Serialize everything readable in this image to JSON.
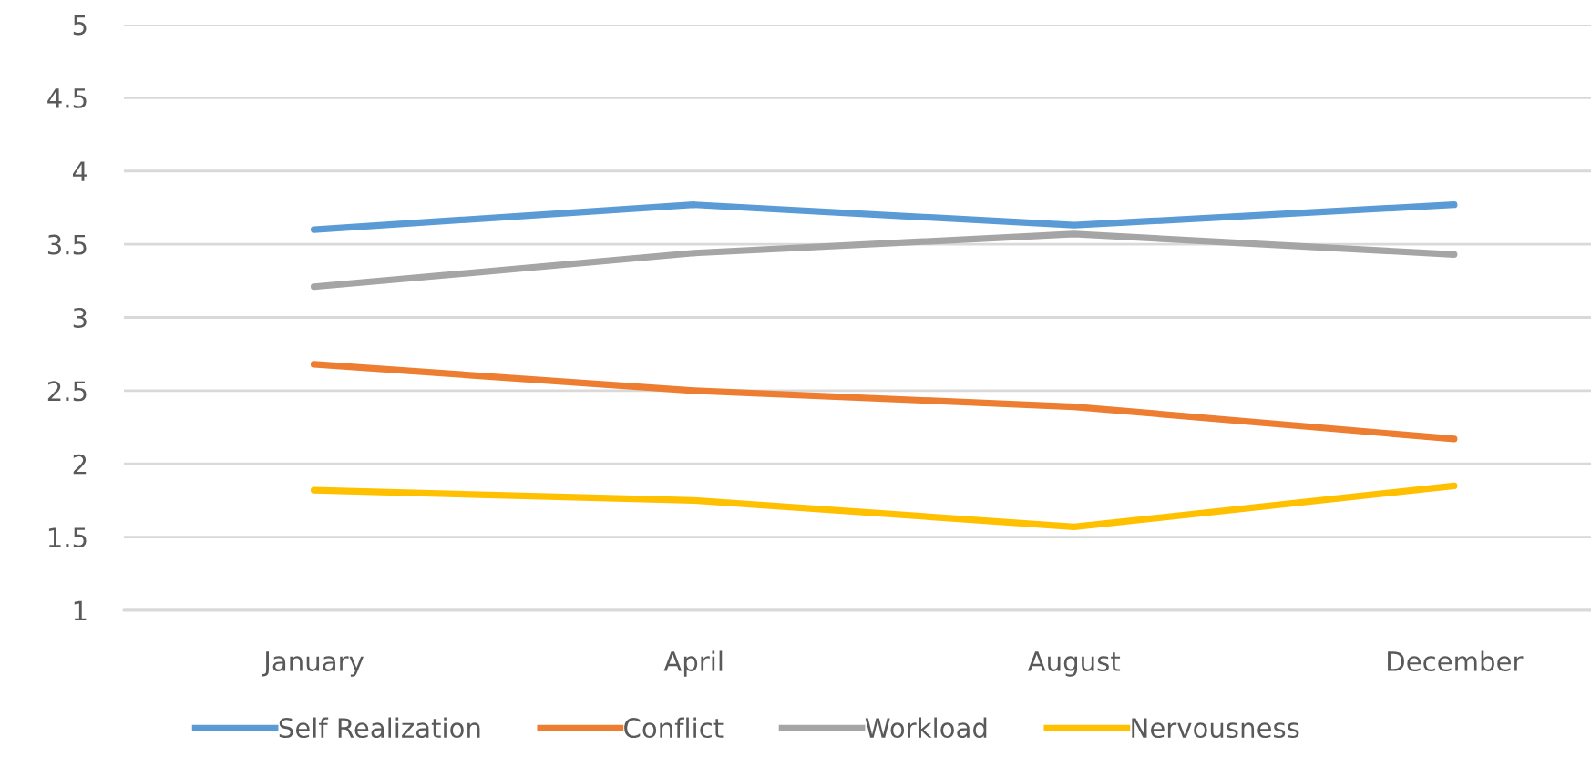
{
  "chart_data": {
    "type": "line",
    "categories": [
      "January",
      "April",
      "August",
      "December"
    ],
    "series": [
      {
        "name": "Self Realization",
        "color": "#5b9bd5",
        "values": [
          3.6,
          3.77,
          3.63,
          3.77
        ]
      },
      {
        "name": "Conflict",
        "color": "#ed7d31",
        "values": [
          2.68,
          2.5,
          2.39,
          2.17
        ]
      },
      {
        "name": "Workload",
        "color": "#a5a5a5",
        "values": [
          3.21,
          3.44,
          3.57,
          3.43
        ]
      },
      {
        "name": "Nervousness",
        "color": "#ffc000",
        "values": [
          1.82,
          1.75,
          1.57,
          1.85
        ]
      }
    ],
    "ylim": [
      1,
      5
    ],
    "yticks": [
      1,
      1.5,
      2,
      2.5,
      3,
      3.5,
      4,
      4.5,
      5
    ],
    "grid": "y",
    "legend": "bottom",
    "marker": "none",
    "line_style": "solid"
  }
}
